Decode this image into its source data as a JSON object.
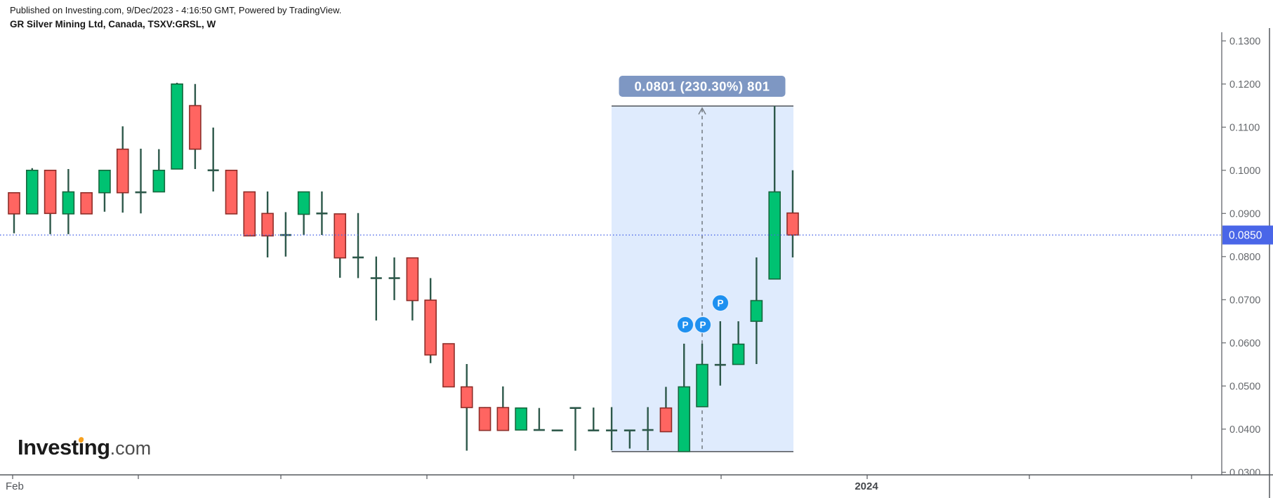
{
  "header": {
    "published_line": "Published on Investing.com, 9/Dec/2023 - 4:16:50 GMT, Powered by TradingView.",
    "instrument_line": "GR Silver Mining Ltd, Canada, TSXV:GRSL, W"
  },
  "logo": {
    "part1": "Invest",
    "dotless_i": "ı",
    "part2": "ng",
    "suffix": ".com"
  },
  "chart_data": {
    "type": "candlestick",
    "title": "GR Silver Mining Ltd, Canada, TSXV:GRSL, W",
    "symbol": "TSXV:GRSL",
    "timeframe": "W",
    "ylim": [
      0.0294,
      0.132
    ],
    "grid": false,
    "y_axis": {
      "labels": [
        "0.1300",
        "0.1200",
        "0.1100",
        "0.1000",
        "0.0900",
        "0.0800",
        "0.0700",
        "0.0600",
        "0.0500",
        "0.0400",
        "0.0300"
      ],
      "values": [
        0.13,
        0.12,
        0.11,
        0.1,
        0.09,
        0.08,
        0.07,
        0.06,
        0.05,
        0.04,
        0.03
      ]
    },
    "x_axis": {
      "labels": [
        {
          "text": "Feb",
          "x": 8,
          "anchor": "start",
          "bold": false
        },
        {
          "text": "2024",
          "x": 1234,
          "anchor": "middle",
          "bold": true
        }
      ],
      "ticks_x": [
        18,
        197,
        400,
        608,
        817,
        1027,
        1235,
        1466,
        1697
      ]
    },
    "candles": [
      [
        0.0948,
        0.0948,
        0.0854,
        0.0899
      ],
      [
        0.0899,
        0.1005,
        0.0899,
        0.1
      ],
      [
        0.1,
        0.1,
        0.0852,
        0.09
      ],
      [
        0.0899,
        0.1003,
        0.0852,
        0.095
      ],
      [
        0.0948,
        0.0948,
        0.0899,
        0.0899
      ],
      [
        0.0948,
        0.1,
        0.0904,
        0.1
      ],
      [
        0.1049,
        0.1102,
        0.0902,
        0.0948
      ],
      [
        0.0949,
        0.105,
        0.09,
        0.0949
      ],
      [
        0.095,
        0.1049,
        0.095,
        0.1
      ],
      [
        0.1003,
        0.1203,
        0.1003,
        0.12
      ],
      [
        0.115,
        0.12,
        0.1003,
        0.1049
      ],
      [
        0.1,
        0.1099,
        0.0951,
        0.1
      ],
      [
        0.1,
        0.1,
        0.0899,
        0.0899
      ],
      [
        0.095,
        0.095,
        0.0848,
        0.0848
      ],
      [
        0.09,
        0.0951,
        0.0798,
        0.0848
      ],
      [
        0.085,
        0.0903,
        0.08,
        0.085
      ],
      [
        0.0898,
        0.095,
        0.085,
        0.095
      ],
      [
        0.09,
        0.0951,
        0.085,
        0.09
      ],
      [
        0.0899,
        0.0899,
        0.0751,
        0.0797
      ],
      [
        0.0798,
        0.0901,
        0.075,
        0.0798
      ],
      [
        0.075,
        0.08,
        0.0652,
        0.075
      ],
      [
        0.075,
        0.0798,
        0.0699,
        0.075
      ],
      [
        0.0797,
        0.0797,
        0.0652,
        0.0698
      ],
      [
        0.0699,
        0.075,
        0.0553,
        0.0572
      ],
      [
        0.0598,
        0.0598,
        0.0498,
        0.0498
      ],
      [
        0.0498,
        0.0551,
        0.035,
        0.045
      ],
      [
        0.045,
        0.0451,
        0.0397,
        0.0397
      ],
      [
        0.045,
        0.0499,
        0.0397,
        0.0397
      ],
      [
        0.0398,
        0.0449,
        0.0398,
        0.0449
      ],
      [
        0.0398,
        0.0449,
        0.0398,
        0.0398
      ],
      [
        0.0397,
        0.0397,
        0.0397,
        0.0397
      ],
      [
        0.0449,
        0.0449,
        0.035,
        0.0449
      ],
      [
        0.0397,
        0.045,
        0.0397,
        0.0397
      ],
      [
        0.0397,
        0.0451,
        0.0351,
        0.0397
      ],
      [
        0.0397,
        0.0397,
        0.0355,
        0.0397
      ],
      [
        0.0398,
        0.0451,
        0.0351,
        0.0398
      ],
      [
        0.0449,
        0.0498,
        0.0394,
        0.0394
      ],
      [
        0.0348,
        0.0598,
        0.0348,
        0.0498
      ],
      [
        0.0452,
        0.0598,
        0.0452,
        0.055
      ],
      [
        0.0549,
        0.065,
        0.0501,
        0.0549
      ],
      [
        0.055,
        0.065,
        0.055,
        0.0597
      ],
      [
        0.065,
        0.0798,
        0.0551,
        0.0698
      ],
      [
        0.0748,
        0.1149,
        0.0748,
        0.095
      ],
      [
        0.0901,
        0.1,
        0.0798,
        0.085
      ]
    ],
    "current_price": {
      "value": 0.085,
      "label": "0.0850"
    },
    "measure_tool": {
      "label": "0.0801 (230.30%) 801",
      "price_top": 0.1149,
      "price_bottom": 0.0348,
      "x_start": 871,
      "x_end": 1130,
      "dashed_line_x": 1000
    },
    "markers": [
      {
        "label": "P",
        "x": 976,
        "y": 463
      },
      {
        "label": "P",
        "x": 1001,
        "y": 463
      },
      {
        "label": "P",
        "x": 1026,
        "y": 432
      }
    ],
    "colors": {
      "up_fill": "#00c272",
      "up_border": "#17673e",
      "down_fill": "#ff6561",
      "down_border": "#8e2d28",
      "wick": "#2d584a",
      "shade": "rgba(150,190,250,0.30)",
      "measure_line": "#5b5f66",
      "measure_dash": "#787f87",
      "measure_badge": "#7e97c3",
      "price_line": "#4a66e8",
      "marker": "#1e90f0",
      "axis_text": "#66696d",
      "date_text": "#515459",
      "date_text_bold": "#45484c",
      "axis_line": "#55585e"
    }
  }
}
